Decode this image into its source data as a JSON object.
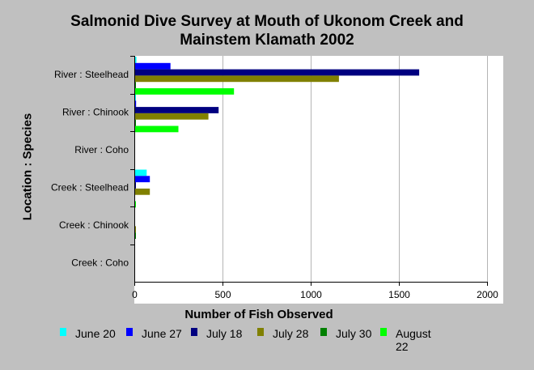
{
  "chart_data": {
    "type": "bar",
    "orientation": "horizontal",
    "title_line1": "Salmonid Dive Survey at Mouth of Ukonom Creek and",
    "title_line2": "Mainstem Klamath 2002",
    "xlabel": "Number of Fish Observed",
    "ylabel": "Location : Species",
    "xlim": [
      0,
      2000
    ],
    "xticks": [
      "0",
      "500",
      "1000",
      "1500",
      "2000"
    ],
    "grid": "vertical",
    "legend_position": "bottom",
    "categories": [
      "River : Steelhead",
      "River :  Chinook",
      "River :  Coho",
      "Creek : Steelhead",
      "Creek : Chinook",
      "Creek :  Coho"
    ],
    "series": [
      {
        "name": "June 20",
        "color": "#00ffff",
        "values": [
          12,
          5,
          0,
          70,
          0,
          0
        ]
      },
      {
        "name": "June 27",
        "color": "#0000ff",
        "values": [
          205,
          10,
          0,
          88,
          0,
          0
        ]
      },
      {
        "name": "July 18",
        "color": "#000080",
        "values": [
          1615,
          478,
          0,
          5,
          0,
          0
        ]
      },
      {
        "name": "July 28",
        "color": "#808000",
        "values": [
          1160,
          420,
          0,
          88,
          5,
          0
        ]
      },
      {
        "name": "July 30",
        "color": "#008000",
        "values": [
          5,
          5,
          0,
          0,
          5,
          0
        ]
      },
      {
        "name": "August 22",
        "color": "#00ff00",
        "values": [
          565,
          250,
          0,
          5,
          0,
          0
        ]
      }
    ]
  }
}
